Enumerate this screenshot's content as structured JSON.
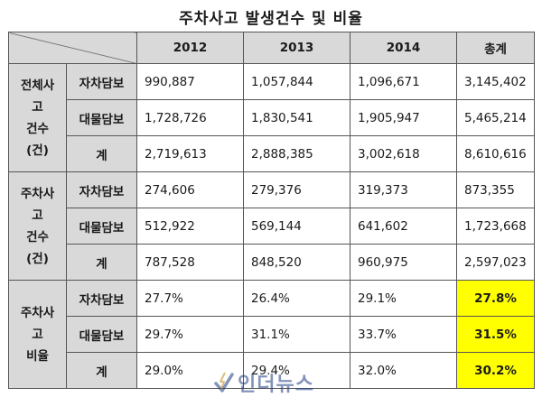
{
  "title": "주차사고 발생건수 및 비율",
  "header": {
    "years": [
      "2012",
      "2013",
      "2014"
    ],
    "total": "총계"
  },
  "groups": [
    {
      "label_line1": "전체사고",
      "label_line2": "건수(건)",
      "rows": [
        {
          "label": "자차담보",
          "values": [
            "990,887",
            "1,057,844",
            "1,096,671"
          ],
          "total": "3,145,402"
        },
        {
          "label": "대물담보",
          "values": [
            "1,728,726",
            "1,830,541",
            "1,905,947"
          ],
          "total": "5,465,214"
        },
        {
          "label": "계",
          "values": [
            "2,719,613",
            "2,888,385",
            "3,002,618"
          ],
          "total": "8,610,616"
        }
      ]
    },
    {
      "label_line1": "주차사고",
      "label_line2": "건수(건)",
      "rows": [
        {
          "label": "자차담보",
          "values": [
            "274,606",
            "279,376",
            "319,373"
          ],
          "total": "873,355"
        },
        {
          "label": "대물담보",
          "values": [
            "512,922",
            "569,144",
            "641,602"
          ],
          "total": "1,723,668"
        },
        {
          "label": "계",
          "values": [
            "787,528",
            "848,520",
            "960,975"
          ],
          "total": "2,597,023"
        }
      ]
    },
    {
      "label_line1": "주차사고",
      "label_line2": "비율",
      "rows": [
        {
          "label": "자차담보",
          "values": [
            "27.7%",
            "26.4%",
            "29.1%"
          ],
          "total": "27.8%"
        },
        {
          "label": "대물담보",
          "values": [
            "29.7%",
            "31.1%",
            "33.7%"
          ],
          "total": "31.5%"
        },
        {
          "label": "계",
          "values": [
            "29.0%",
            "29.4%",
            "32.0%"
          ],
          "total": "30.2%"
        }
      ]
    }
  ],
  "watermark": {
    "text": "인더뉴스",
    "icon": "lightning-check-logo-icon",
    "color": "#1e3c82"
  },
  "colors": {
    "header_bg": "#d9d9d9",
    "highlight": "#ffff00",
    "border": "#555555"
  }
}
